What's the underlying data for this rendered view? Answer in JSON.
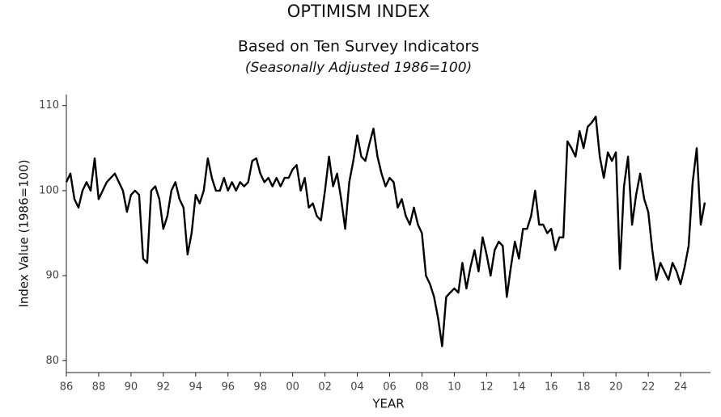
{
  "chart_data": {
    "type": "line",
    "title": "OPTIMISM INDEX",
    "subtitle": "Based on Ten Survey Indicators",
    "note": "(Seasonally Adjusted 1986=100)",
    "x_label": "YEAR",
    "y_label": "Index Value (1986=100)",
    "x": [
      1986,
      1986.25,
      1986.5,
      1986.75,
      1987,
      1987.25,
      1987.5,
      1987.75,
      1988,
      1988.25,
      1988.5,
      1988.75,
      1989,
      1989.25,
      1989.5,
      1989.75,
      1990,
      1990.25,
      1990.5,
      1990.75,
      1991,
      1991.25,
      1991.5,
      1991.75,
      1992,
      1992.25,
      1992.5,
      1992.75,
      1993,
      1993.25,
      1993.5,
      1993.75,
      1994,
      1994.25,
      1994.5,
      1994.75,
      1995,
      1995.25,
      1995.5,
      1995.75,
      1996,
      1996.25,
      1996.5,
      1996.75,
      1997,
      1997.25,
      1997.5,
      1997.75,
      1998,
      1998.25,
      1998.5,
      1998.75,
      1999,
      1999.25,
      1999.5,
      1999.75,
      2000,
      2000.25,
      2000.5,
      2000.75,
      2001,
      2001.25,
      2001.5,
      2001.75,
      2002,
      2002.25,
      2002.5,
      2002.75,
      2003,
      2003.25,
      2003.5,
      2003.75,
      2004,
      2004.25,
      2004.5,
      2004.75,
      2005,
      2005.25,
      2005.5,
      2005.75,
      2006,
      2006.25,
      2006.5,
      2006.75,
      2007,
      2007.25,
      2007.5,
      2007.75,
      2008,
      2008.25,
      2008.5,
      2008.75,
      2009,
      2009.25,
      2009.5,
      2009.75,
      2010,
      2010.25,
      2010.5,
      2010.75,
      2011,
      2011.25,
      2011.5,
      2011.75,
      2012,
      2012.25,
      2012.5,
      2012.75,
      2013,
      2013.25,
      2013.5,
      2013.75,
      2014,
      2014.25,
      2014.5,
      2014.75,
      2015,
      2015.25,
      2015.5,
      2015.75,
      2016,
      2016.25,
      2016.5,
      2016.75,
      2017,
      2017.25,
      2017.5,
      2017.75,
      2018,
      2018.25,
      2018.5,
      2018.75,
      2019,
      2019.25,
      2019.5,
      2019.75,
      2020,
      2020.25,
      2020.5,
      2020.75,
      2021,
      2021.25,
      2021.5,
      2021.75,
      2022,
      2022.25,
      2022.5,
      2022.75,
      2023,
      2023.25,
      2023.5,
      2023.75,
      2024,
      2024.25,
      2024.5,
      2024.75,
      2025,
      2025.25,
      2025.5
    ],
    "series": [
      {
        "color": "#000000",
        "values": [
          101,
          102,
          99,
          98,
          100,
          101,
          100,
          103.8,
          99,
          100,
          101,
          101.5,
          102,
          101,
          100,
          97.5,
          99.5,
          100,
          99.5,
          92,
          91.5,
          100,
          100.5,
          99,
          95.5,
          97,
          100,
          101,
          99,
          98,
          92.5,
          95,
          99.5,
          98.5,
          100,
          103.8,
          101.5,
          100,
          100,
          101.5,
          100,
          101,
          100,
          101,
          100.5,
          101,
          103.5,
          103.8,
          102,
          101,
          101.5,
          100.5,
          101.5,
          100.5,
          101.5,
          101.5,
          102.5,
          103,
          100,
          101.5,
          98,
          98.5,
          97,
          96.5,
          100,
          104,
          100.5,
          102,
          99,
          95.5,
          101,
          103.5,
          106.5,
          104,
          103.5,
          105.5,
          107.3,
          104,
          102,
          100.5,
          101.5,
          101,
          98,
          99,
          97,
          96,
          98,
          96,
          95,
          90,
          89,
          87.5,
          85,
          81.7,
          87.5,
          88,
          88.5,
          88,
          91.5,
          88.5,
          91,
          93,
          90.5,
          94.5,
          92.5,
          90,
          93,
          94,
          93.5,
          87.5,
          91,
          94,
          92,
          95.5,
          95.5,
          97,
          100,
          96,
          96,
          95,
          95.5,
          93,
          94.5,
          94.5,
          105.8,
          105,
          104,
          107,
          105,
          107.5,
          108,
          108.7,
          104,
          101.5,
          104.5,
          103.5,
          104.5,
          90.8,
          100.5,
          104,
          96,
          99.5,
          102,
          99,
          97.5,
          93,
          89.5,
          91.5,
          90.5,
          89.5,
          91.5,
          90.5,
          89,
          91,
          93.5,
          101,
          105,
          96,
          98.6
        ]
      }
    ],
    "xlim": [
      1986,
      2025.85
    ],
    "xticks": [
      {
        "value": 1986,
        "label": "86"
      },
      {
        "value": 1988,
        "label": "88"
      },
      {
        "value": 1990,
        "label": "90"
      },
      {
        "value": 1992,
        "label": "92"
      },
      {
        "value": 1994,
        "label": "94"
      },
      {
        "value": 1996,
        "label": "96"
      },
      {
        "value": 1998,
        "label": "98"
      },
      {
        "value": 2000,
        "label": "00"
      },
      {
        "value": 2002,
        "label": "02"
      },
      {
        "value": 2004,
        "label": "04"
      },
      {
        "value": 2006,
        "label": "06"
      },
      {
        "value": 2008,
        "label": "08"
      },
      {
        "value": 2010,
        "label": "10"
      },
      {
        "value": 2012,
        "label": "12"
      },
      {
        "value": 2014,
        "label": "14"
      },
      {
        "value": 2016,
        "label": "16"
      },
      {
        "value": 2018,
        "label": "18"
      },
      {
        "value": 2020,
        "label": "20"
      },
      {
        "value": 2022,
        "label": "22"
      },
      {
        "value": 2024,
        "label": "24"
      }
    ],
    "ylim": [
      78.6,
      111.3
    ],
    "yticks": [
      80,
      90,
      100,
      110
    ]
  }
}
